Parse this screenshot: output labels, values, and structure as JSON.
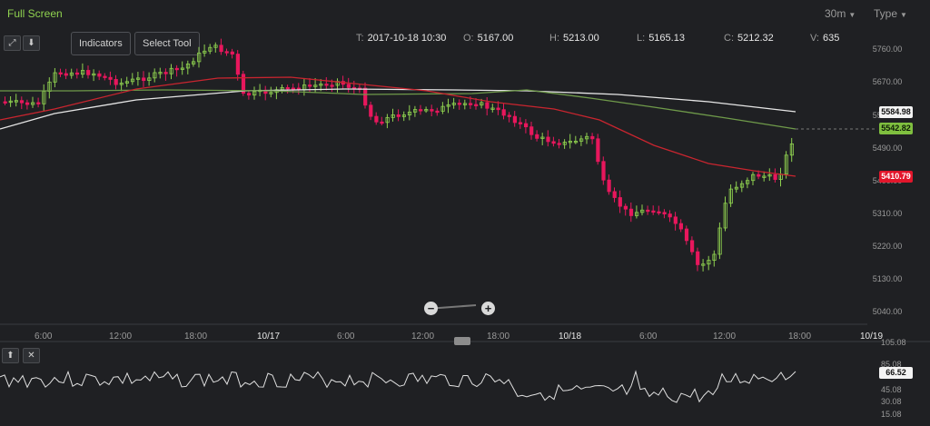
{
  "header": {
    "fullscreen_label": "Full Screen",
    "interval_label": "30m",
    "type_label": "Type"
  },
  "toolbar": {
    "indicators_label": "Indicators",
    "select_tool_label": "Select Tool"
  },
  "ohlc": {
    "time_key": "T:",
    "time_value": "2017-10-18 10:30",
    "open_key": "O:",
    "open_value": "5167.00",
    "high_key": "H:",
    "high_value": "5213.00",
    "low_key": "L:",
    "low_value": "5165.13",
    "close_key": "C:",
    "close_value": "5212.32",
    "volume_key": "V:",
    "volume_value": "635"
  },
  "chart_data": {
    "type": "line",
    "y_ticks": [
      "5760.00",
      "5670.00",
      "5580.00",
      "5490.00",
      "5400.00",
      "5310.00",
      "5220.00",
      "5130.00",
      "5040.00"
    ],
    "x_ticks": [
      "6:00",
      "12:00",
      "18:00",
      "10/17",
      "6:00",
      "12:00",
      "18:00",
      "10/18",
      "6:00",
      "12:00",
      "18:00",
      "10/19"
    ],
    "major_ticks": [
      "10/17",
      "10/18",
      "10/19"
    ],
    "ylim": [
      5040,
      5760
    ],
    "series": [],
    "price_tags": {
      "white": "5584.98",
      "green": "5542.82",
      "red": "5410.79"
    },
    "up_color": "#8fd14f",
    "down_color": "#e8175d",
    "ma_colors": {
      "white": "#e6e6e6",
      "green": "#6f9a4a",
      "red": "#c9252f"
    }
  },
  "oscillator": {
    "ticks": [
      "105.08",
      "85.08",
      "66.52",
      "45.08",
      "30.08",
      "15.08"
    ],
    "current_value": "66.52"
  },
  "zoom": {
    "minus_label": "−",
    "plus_label": "+"
  }
}
